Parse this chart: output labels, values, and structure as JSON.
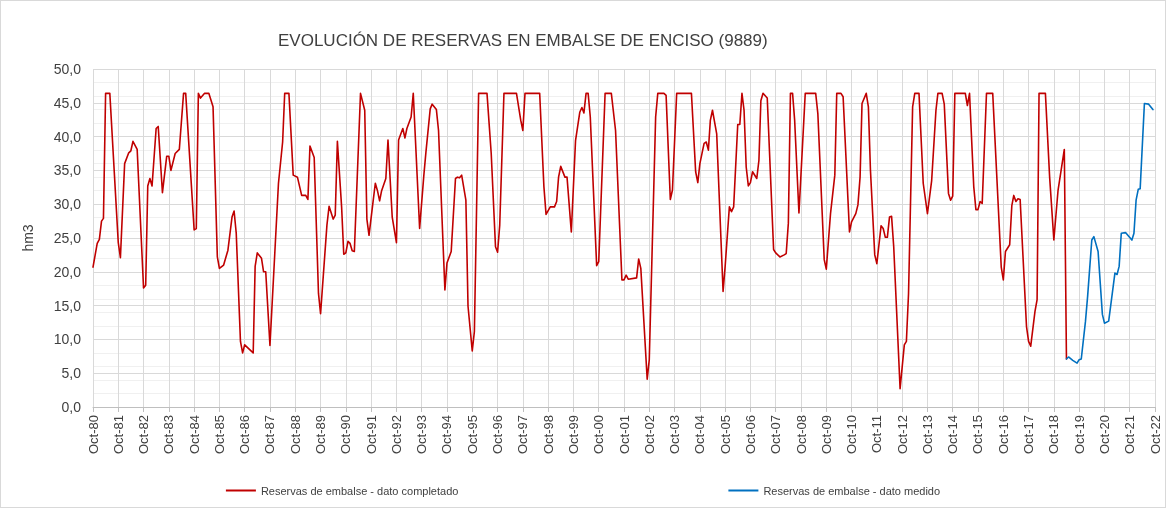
{
  "chart_data": {
    "type": "line",
    "title": "EVOLUCIÓN DE RESERVAS EN EMBALSE DE ENCISO (9889)",
    "ylabel": "hm3",
    "xlim": [
      "1980-10",
      "2022-10"
    ],
    "xticks": [
      {
        "value": "1980-10",
        "label": "Oct-80"
      },
      {
        "value": "1981-10",
        "label": "Oct-81"
      },
      {
        "value": "1982-10",
        "label": "Oct-82"
      },
      {
        "value": "1983-10",
        "label": "Oct-83"
      },
      {
        "value": "1984-10",
        "label": "Oct-84"
      },
      {
        "value": "1985-10",
        "label": "Oct-85"
      },
      {
        "value": "1986-10",
        "label": "Oct-86"
      },
      {
        "value": "1987-10",
        "label": "Oct-87"
      },
      {
        "value": "1988-10",
        "label": "Oct-88"
      },
      {
        "value": "1989-10",
        "label": "Oct-89"
      },
      {
        "value": "1990-10",
        "label": "Oct-90"
      },
      {
        "value": "1991-10",
        "label": "Oct-91"
      },
      {
        "value": "1992-10",
        "label": "Oct-92"
      },
      {
        "value": "1993-10",
        "label": "Oct-93"
      },
      {
        "value": "1994-10",
        "label": "Oct-94"
      },
      {
        "value": "1995-10",
        "label": "Oct-95"
      },
      {
        "value": "1996-10",
        "label": "Oct-96"
      },
      {
        "value": "1997-10",
        "label": "Oct-97"
      },
      {
        "value": "1998-10",
        "label": "Oct-98"
      },
      {
        "value": "1999-10",
        "label": "Oct-99"
      },
      {
        "value": "2000-10",
        "label": "Oct-00"
      },
      {
        "value": "2001-10",
        "label": "Oct-01"
      },
      {
        "value": "2002-10",
        "label": "Oct-02"
      },
      {
        "value": "2003-10",
        "label": "Oct-03"
      },
      {
        "value": "2004-10",
        "label": "Oct-04"
      },
      {
        "value": "2005-10",
        "label": "Oct-05"
      },
      {
        "value": "2006-10",
        "label": "Oct-06"
      },
      {
        "value": "2007-10",
        "label": "Oct-07"
      },
      {
        "value": "2008-10",
        "label": "Oct-08"
      },
      {
        "value": "2009-10",
        "label": "Oct-09"
      },
      {
        "value": "2010-10",
        "label": "Oct-10"
      },
      {
        "value": "2011-10",
        "label": "Oct-11"
      },
      {
        "value": "2012-10",
        "label": "Oct-12"
      },
      {
        "value": "2013-10",
        "label": "Oct-13"
      },
      {
        "value": "2014-10",
        "label": "Oct-14"
      },
      {
        "value": "2015-10",
        "label": "Oct-15"
      },
      {
        "value": "2016-10",
        "label": "Oct-16"
      },
      {
        "value": "2017-10",
        "label": "Oct-17"
      },
      {
        "value": "2018-10",
        "label": "Oct-18"
      },
      {
        "value": "2019-10",
        "label": "Oct-19"
      },
      {
        "value": "2020-10",
        "label": "Oct-20"
      },
      {
        "value": "2021-10",
        "label": "Oct-21"
      },
      {
        "value": "2022-10",
        "label": "Oct-22"
      }
    ],
    "ylim": [
      0,
      50
    ],
    "yticks": [
      {
        "value": 0,
        "label": "0,0"
      },
      {
        "value": 5,
        "label": "5,0"
      },
      {
        "value": 10,
        "label": "10,0"
      },
      {
        "value": 15,
        "label": "15,0"
      },
      {
        "value": 20,
        "label": "20,0"
      },
      {
        "value": 25,
        "label": "25,0"
      },
      {
        "value": 30,
        "label": "30,0"
      },
      {
        "value": 35,
        "label": "35,0"
      },
      {
        "value": 40,
        "label": "40,0"
      },
      {
        "value": 45,
        "label": "45,0"
      },
      {
        "value": 50,
        "label": "50,0"
      }
    ],
    "grid": true,
    "legend": "bottom",
    "marker": "none",
    "line_style": "solid",
    "series": [
      {
        "name": "Reservas de embalse - dato completado",
        "color": "#c00000",
        "x": [
          "1980-10",
          "1980-12",
          "1981-01",
          "1981-02",
          "1981-03",
          "1981-04",
          "1981-06",
          "1981-10",
          "1981-11",
          "1982-01",
          "1982-03",
          "1982-04",
          "1982-05",
          "1982-07",
          "1982-10",
          "1982-11",
          "1982-12",
          "1983-01",
          "1983-02",
          "1983-04",
          "1983-05",
          "1983-07",
          "1983-09",
          "1983-10",
          "1983-11",
          "1984-01",
          "1984-03",
          "1984-05",
          "1984-06",
          "1984-10",
          "1984-11",
          "1984-12",
          "1985-01",
          "1985-03",
          "1985-05",
          "1985-07",
          "1985-09",
          "1985-10",
          "1985-12",
          "1986-02",
          "1986-04",
          "1986-05",
          "1986-06",
          "1986-08",
          "1986-09",
          "1986-10",
          "1987-01",
          "1987-02",
          "1987-03",
          "1987-04",
          "1987-06",
          "1987-07",
          "1987-08",
          "1987-10",
          "1987-12",
          "1988-02",
          "1988-04",
          "1988-05",
          "1988-07",
          "1988-09",
          "1988-11",
          "1989-01",
          "1989-03",
          "1989-04",
          "1989-05",
          "1989-07",
          "1989-09",
          "1989-10",
          "1990-01",
          "1990-02",
          "1990-04",
          "1990-05",
          "1990-06",
          "1990-08",
          "1990-09",
          "1990-10",
          "1990-11",
          "1990-12",
          "1991-01",
          "1991-02",
          "1991-05",
          "1991-07",
          "1991-08",
          "1991-09",
          "1991-11",
          "1991-12",
          "1992-01",
          "1992-02",
          "1992-03",
          "1992-05",
          "1992-06",
          "1992-08",
          "1992-10",
          "1992-11",
          "1993-01",
          "1993-02",
          "1993-03",
          "1993-05",
          "1993-06",
          "1993-09",
          "1993-11",
          "1993-12",
          "1994-02",
          "1994-03",
          "1994-05",
          "1994-06",
          "1994-09",
          "1994-10",
          "1994-12",
          "1995-02",
          "1995-03",
          "1995-04",
          "1995-05",
          "1995-07",
          "1995-08",
          "1995-10",
          "1995-11",
          "1996-01",
          "1996-05",
          "1996-07",
          "1996-09",
          "1996-10",
          "1996-11",
          "1997-01",
          "1997-07",
          "1997-09",
          "1997-10",
          "1997-11",
          "1998-06",
          "1998-08",
          "1998-09",
          "1998-11",
          "1999-01",
          "1999-02",
          "1999-03",
          "1999-04",
          "1999-06",
          "1999-07",
          "1999-09",
          "1999-11",
          "2000-01",
          "2000-02",
          "2000-03",
          "2000-04",
          "2000-05",
          "2000-06",
          "2000-09",
          "2000-10",
          "2001-01",
          "2001-04",
          "2001-06",
          "2001-09",
          "2001-10",
          "2001-11",
          "2001-12",
          "2002-04",
          "2002-05",
          "2002-06",
          "2002-09",
          "2002-10",
          "2003-01",
          "2003-02",
          "2003-05",
          "2003-06",
          "2003-08",
          "2003-09",
          "2003-11",
          "2004-06",
          "2004-08",
          "2004-09",
          "2004-10",
          "2004-12",
          "2005-01",
          "2005-02",
          "2005-03",
          "2005-04",
          "2005-06",
          "2005-09",
          "2005-10",
          "2005-12",
          "2006-01",
          "2006-02",
          "2006-04",
          "2006-05",
          "2006-06",
          "2006-07",
          "2006-08",
          "2006-09",
          "2006-10",
          "2006-11",
          "2007-01",
          "2007-02",
          "2007-03",
          "2007-04",
          "2007-06",
          "2007-09",
          "2007-10",
          "2007-12",
          "2008-02",
          "2008-03",
          "2008-04",
          "2008-05",
          "2008-06",
          "2008-07",
          "2008-09",
          "2008-10",
          "2008-12",
          "2009-05",
          "2009-06",
          "2009-09",
          "2009-10",
          "2009-12",
          "2010-02",
          "2010-03",
          "2010-05",
          "2010-06",
          "2010-09",
          "2010-10",
          "2010-12",
          "2011-01",
          "2011-02",
          "2011-03",
          "2011-05",
          "2011-06",
          "2011-07",
          "2011-09",
          "2011-10",
          "2011-12",
          "2012-01",
          "2012-02",
          "2012-03",
          "2012-04",
          "2012-05",
          "2012-06",
          "2012-09",
          "2012-11",
          "2012-12",
          "2013-01",
          "2013-03",
          "2013-04",
          "2013-06",
          "2013-08",
          "2013-10",
          "2013-12",
          "2014-02",
          "2014-03",
          "2014-05",
          "2014-06",
          "2014-08",
          "2014-09",
          "2014-10",
          "2014-11",
          "2015-04",
          "2015-05",
          "2015-06",
          "2015-08",
          "2015-09",
          "2015-10",
          "2015-11",
          "2015-12",
          "2016-02",
          "2016-05",
          "2016-09",
          "2016-10",
          "2016-11",
          "2017-01",
          "2017-02",
          "2017-03",
          "2017-04",
          "2017-05",
          "2017-06",
          "2017-09",
          "2017-10",
          "2017-11",
          "2018-01",
          "2018-02",
          "2018-03",
          "2018-06",
          "2018-08",
          "2018-10",
          "2018-12",
          "2019-03",
          "2019-04"
        ],
        "values": [
          20.7,
          24.2,
          24.8,
          27.5,
          27.9,
          46.4,
          46.4,
          24.3,
          22.1,
          36.0,
          37.6,
          37.9,
          39.3,
          38.1,
          17.6,
          18.0,
          32.7,
          33.8,
          32.7,
          41.2,
          41.5,
          31.7,
          37.1,
          37.1,
          35.0,
          37.5,
          38.1,
          46.4,
          46.4,
          26.2,
          26.4,
          46.4,
          45.7,
          46.4,
          46.4,
          44.4,
          22.2,
          20.5,
          21.0,
          23.2,
          28.1,
          29.0,
          25.7,
          9.7,
          8.0,
          9.2,
          8.3,
          8.0,
          20.8,
          22.8,
          22.0,
          20.0,
          20.0,
          9.1,
          21.0,
          33.1,
          39.2,
          46.4,
          46.4,
          34.3,
          34.0,
          31.3,
          31.3,
          30.7,
          38.6,
          36.9,
          16.8,
          13.8,
          26.9,
          29.7,
          27.8,
          28.4,
          39.3,
          29.6,
          22.6,
          22.8,
          24.5,
          24.2,
          23.1,
          23.0,
          46.4,
          43.9,
          27.8,
          25.4,
          30.6,
          33.1,
          32.0,
          30.5,
          32.0,
          33.8,
          39.5,
          28.1,
          24.3,
          39.5,
          41.2,
          39.8,
          41.2,
          42.9,
          46.4,
          26.4,
          34.3,
          37.7,
          44.1,
          44.8,
          44.0,
          40.9,
          17.3,
          21.3,
          23.0,
          33.8,
          34.0,
          33.9,
          34.3,
          30.6,
          14.9,
          8.3,
          11.2,
          46.4,
          46.4,
          37.5,
          23.7,
          22.9,
          26.9,
          46.4,
          46.4,
          42.4,
          40.9,
          46.4,
          46.4,
          32.6,
          28.5,
          29.6,
          29.6,
          30.4,
          34.0,
          35.6,
          34.0,
          34.0,
          25.9,
          39.4,
          43.6,
          44.3,
          43.5,
          46.4,
          46.4,
          42.9,
          20.9,
          21.5,
          46.4,
          46.4,
          40.9,
          18.8,
          18.8,
          19.5,
          18.9,
          19.1,
          21.9,
          20.5,
          4.1,
          7.0,
          42.9,
          46.4,
          46.4,
          46.1,
          30.7,
          32.1,
          46.4,
          46.4,
          34.8,
          33.2,
          36.0,
          39.0,
          39.2,
          38.0,
          42.4,
          43.9,
          40.4,
          17.1,
          20.8,
          29.6,
          28.9,
          29.6,
          41.8,
          41.8,
          46.4,
          43.9,
          35.5,
          32.7,
          33.2,
          34.8,
          33.8,
          36.5,
          45.3,
          46.4,
          45.7,
          23.3,
          22.8,
          22.2,
          22.5,
          22.7,
          27.2,
          46.4,
          46.4,
          42.4,
          28.7,
          34.5,
          46.4,
          46.4,
          43.4,
          21.8,
          20.4,
          28.6,
          34.3,
          46.4,
          46.4,
          45.9,
          25.9,
          27.4,
          28.6,
          29.9,
          34.0,
          44.9,
          46.4,
          44.4,
          35.0,
          22.5,
          21.2,
          26.8,
          26.4,
          25.1,
          25.1,
          28.1,
          28.2,
          23.7,
          2.7,
          9.2,
          9.7,
          16.8,
          44.4,
          46.4,
          46.4,
          33.1,
          28.6,
          33.5,
          43.9,
          46.4,
          46.4,
          44.8,
          31.6,
          30.6,
          31.2,
          46.4,
          46.4,
          44.6,
          46.4,
          32.6,
          29.2,
          29.2,
          30.4,
          30.1,
          46.4,
          46.4,
          20.7,
          18.8,
          23.0,
          24.0,
          29.8,
          31.3,
          30.4,
          30.8,
          30.7,
          11.9,
          9.7,
          9.0,
          14.1,
          15.9,
          46.4,
          46.4,
          34.0,
          24.7,
          32.1,
          38.1,
          7.1
        ]
      },
      {
        "name": "Reservas de embalse - dato medido",
        "color": "#0070c0",
        "x": [
          "2019-04",
          "2019-05",
          "2019-07",
          "2019-09",
          "2019-10",
          "2019-11",
          "2020-01",
          "2020-02",
          "2020-04",
          "2020-05",
          "2020-07",
          "2020-09",
          "2020-10",
          "2020-12",
          "2021-03",
          "2021-04",
          "2021-05",
          "2021-06",
          "2021-08",
          "2021-11",
          "2021-12",
          "2022-01",
          "2022-02",
          "2022-03",
          "2022-05",
          "2022-07",
          "2022-09"
        ],
        "values": [
          7.1,
          7.4,
          6.9,
          6.5,
          7.0,
          7.1,
          12.7,
          16.4,
          24.7,
          25.2,
          23.0,
          13.7,
          12.4,
          12.7,
          19.8,
          19.6,
          20.8,
          25.7,
          25.8,
          24.7,
          25.7,
          30.6,
          32.2,
          32.3,
          44.9,
          44.8,
          44.0
        ]
      }
    ]
  }
}
